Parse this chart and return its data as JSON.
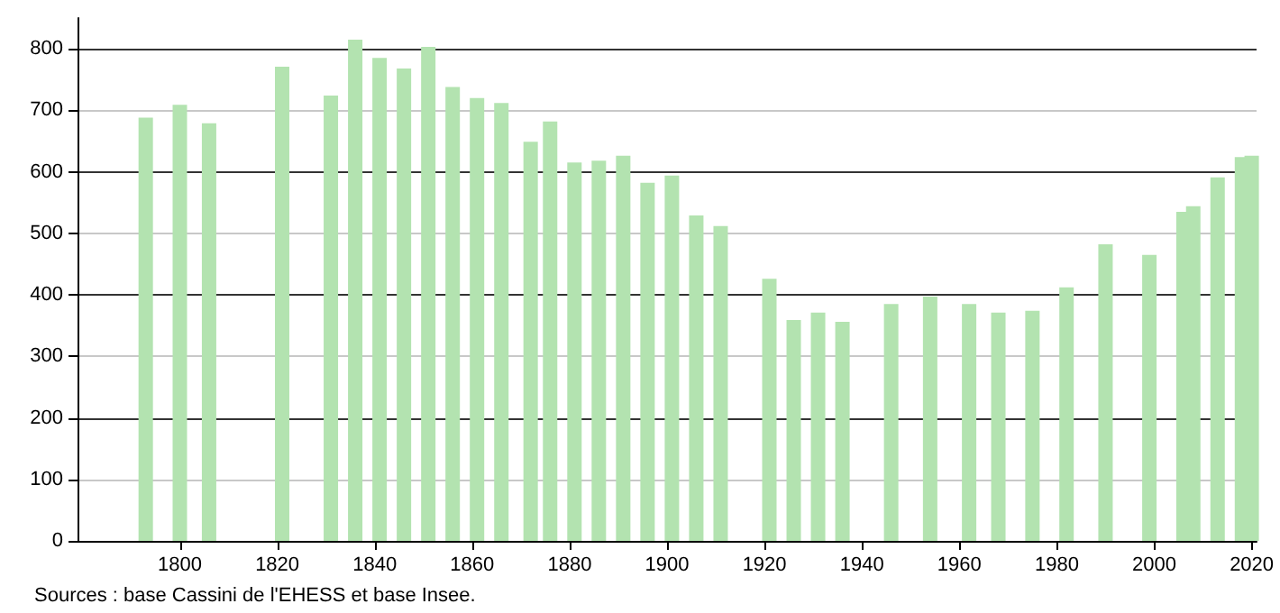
{
  "chart_data": {
    "type": "bar",
    "x": [
      1793,
      1800,
      1806,
      1821,
      1831,
      1836,
      1841,
      1846,
      1851,
      1856,
      1861,
      1866,
      1872,
      1876,
      1881,
      1886,
      1891,
      1896,
      1901,
      1906,
      1911,
      1921,
      1926,
      1931,
      1936,
      1946,
      1954,
      1962,
      1968,
      1975,
      1982,
      1990,
      1999,
      2006,
      2008,
      2013,
      2018,
      2020
    ],
    "values": [
      688,
      709,
      679,
      771,
      724,
      815,
      785,
      768,
      803,
      738,
      720,
      712,
      649,
      682,
      615,
      618,
      626,
      582,
      594,
      529,
      512,
      426,
      359,
      371,
      356,
      385,
      397,
      385,
      371,
      374,
      412,
      482,
      465,
      535,
      544,
      591,
      624,
      626
    ],
    "color": "#b3e3b0",
    "xlim": [
      1779,
      2021
    ],
    "xticks": [
      1800,
      1820,
      1840,
      1860,
      1880,
      1900,
      1920,
      1940,
      1960,
      1980,
      2000,
      2020
    ],
    "ylim": [
      0,
      850
    ],
    "yticks": [
      0,
      100,
      200,
      300,
      400,
      500,
      600,
      700,
      800
    ],
    "grid": "y",
    "annotations": [
      "Sources : base Cassini de l'EHESS et base Insee."
    ]
  }
}
